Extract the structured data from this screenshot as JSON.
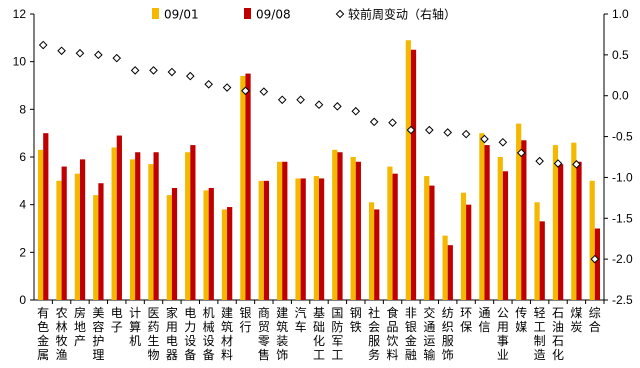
{
  "chart_data": {
    "type": "bar",
    "categories": [
      "有色金属",
      "农林牧渔",
      "房地产",
      "美容护理",
      "电子",
      "计算机",
      "医药生物",
      "家用电器",
      "电力设备",
      "机械设备",
      "建筑材料",
      "银行",
      "商贸零售",
      "建筑装饰",
      "汽车",
      "基础化工",
      "国防军工",
      "钢铁",
      "社会服务",
      "食品饮料",
      "非银金融",
      "交通运输",
      "纺织服饰",
      "环保",
      "通信",
      "公用事业",
      "传媒",
      "轻工制造",
      "石油石化",
      "煤炭",
      "综合"
    ],
    "series": [
      {
        "name": "09/01",
        "type": "bar",
        "axis": "left",
        "color": "#F5B800",
        "values": [
          6.3,
          5.0,
          5.3,
          4.4,
          6.4,
          5.9,
          5.7,
          4.4,
          6.2,
          4.6,
          3.8,
          9.4,
          5.0,
          5.8,
          5.1,
          5.2,
          6.3,
          6.0,
          4.1,
          5.6,
          10.9,
          5.2,
          2.7,
          4.5,
          7.0,
          6.0,
          7.4,
          4.1,
          6.5,
          6.6,
          5.0
        ]
      },
      {
        "name": "09/08",
        "type": "bar",
        "axis": "left",
        "color": "#C00000",
        "values": [
          7.0,
          5.6,
          5.9,
          4.9,
          6.9,
          6.2,
          6.2,
          4.7,
          6.5,
          4.7,
          3.9,
          9.5,
          5.0,
          5.8,
          5.1,
          5.1,
          6.2,
          5.8,
          3.8,
          5.3,
          10.5,
          4.8,
          2.3,
          4.0,
          6.5,
          5.4,
          6.7,
          3.3,
          5.7,
          5.8,
          3.0
        ]
      },
      {
        "name": "较前周变动（右轴）",
        "type": "scatter",
        "axis": "right",
        "color": "#000000",
        "values": [
          0.62,
          0.55,
          0.52,
          0.5,
          0.46,
          0.31,
          0.31,
          0.29,
          0.24,
          0.14,
          0.1,
          0.06,
          0.05,
          -0.05,
          -0.05,
          -0.11,
          -0.13,
          -0.19,
          -0.32,
          -0.33,
          -0.42,
          -0.42,
          -0.45,
          -0.47,
          -0.53,
          -0.57,
          -0.7,
          -0.8,
          -0.83,
          -0.84,
          -2.0
        ]
      }
    ],
    "yleft": {
      "min": 0,
      "max": 12,
      "ticks": [
        "0",
        "2",
        "4",
        "6",
        "8",
        "10",
        "12"
      ]
    },
    "yright": {
      "min": -2.5,
      "max": 1.0,
      "ticks": [
        "-2.5",
        "-2.0",
        "-1.5",
        "-1.0",
        "-0.5",
        "0.0",
        "0.5",
        "1.0"
      ]
    },
    "legend_position": "top",
    "grid": false
  }
}
